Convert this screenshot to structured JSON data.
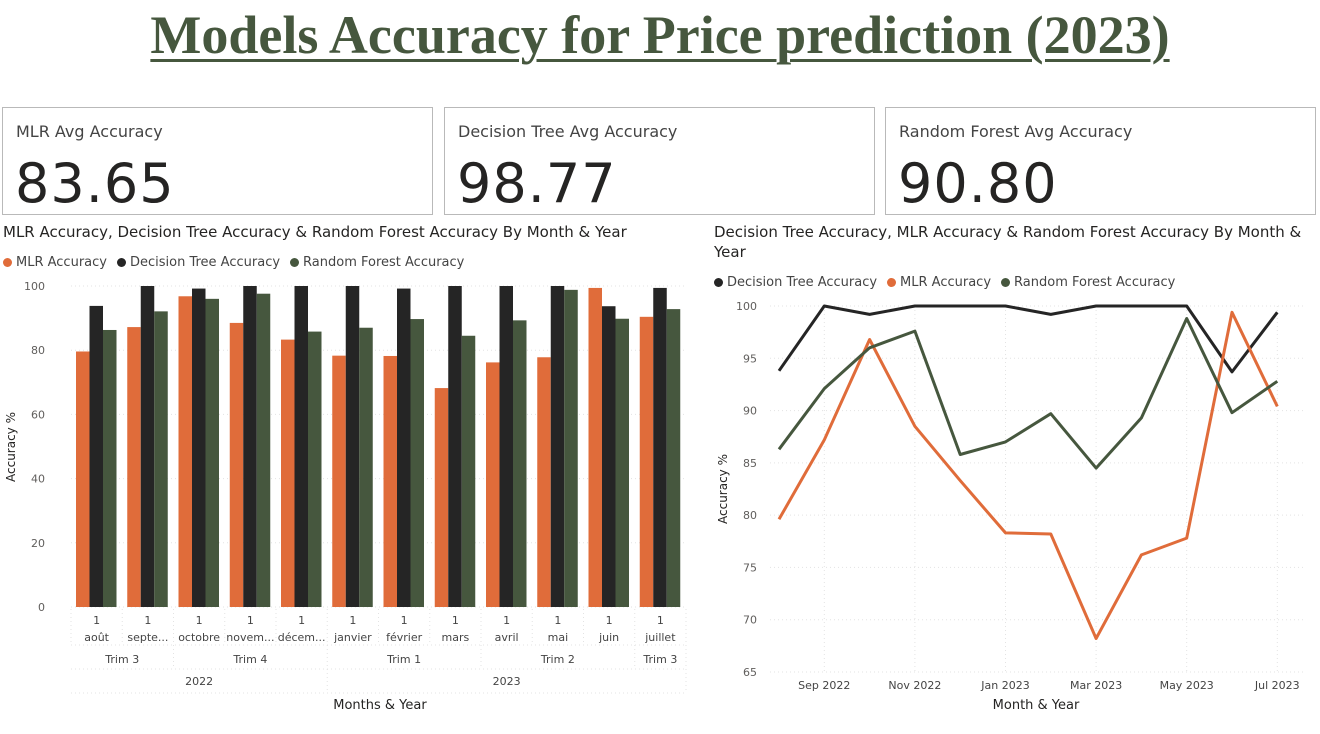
{
  "page": {
    "title": "Models Accuracy for Price prediction (2023)"
  },
  "cards": [
    {
      "label": "MLR Avg Accuracy",
      "value": "83.65"
    },
    {
      "label": "Decision Tree Avg Accuracy",
      "value": "98.77"
    },
    {
      "label": "Random Forest Avg Accuracy",
      "value": "90.80"
    }
  ],
  "colors": {
    "mlr": "#e06c3a",
    "tree": "#252525",
    "forest": "#46573e",
    "title": "#46573e"
  },
  "bar_chart": {
    "title": "MLR Accuracy, Decision Tree Accuracy & Random Forest Accuracy By Month & Year",
    "legend": [
      "MLR Accuracy",
      "Decision Tree Accuracy",
      "Random Forest Accuracy"
    ],
    "ylabel": "Accuracy %",
    "xlabel": "Months & Year",
    "day_labels": [
      "1",
      "1",
      "1",
      "1",
      "1",
      "1",
      "1",
      "1",
      "1",
      "1",
      "1",
      "1"
    ],
    "months": [
      "août",
      "septe...",
      "octobre",
      "novem...",
      "décem...",
      "janvier",
      "février",
      "mars",
      "avril",
      "mai",
      "juin",
      "juillet"
    ],
    "quarters": [
      "Trim 3",
      "Trim 4",
      "Trim 1",
      "Trim 2",
      "Trim 3"
    ],
    "years": [
      "2022",
      "2023"
    ]
  },
  "line_chart": {
    "title_line1": "Decision Tree Accuracy, MLR Accuracy & Random Forest Accuracy By Month &",
    "title_line2": "Year",
    "legend": [
      "Decision Tree Accuracy",
      "MLR Accuracy",
      "Random Forest Accuracy"
    ],
    "ylabel": "Accuracy %",
    "xlabel": "Month & Year"
  },
  "chart_data": [
    {
      "type": "bar",
      "title": "MLR Accuracy, Decision Tree Accuracy & Random Forest Accuracy By Month & Year",
      "xlabel": "Months & Year",
      "ylabel": "Accuracy %",
      "ylim": [
        0,
        100
      ],
      "yticks": [
        0,
        20,
        40,
        60,
        80,
        100
      ],
      "grid": true,
      "legend_position": "top-left",
      "categories": [
        "août",
        "septe...",
        "octobre",
        "novem...",
        "décem...",
        "janvier",
        "février",
        "mars",
        "avril",
        "mai",
        "juin",
        "juillet"
      ],
      "series": [
        {
          "name": "MLR Accuracy",
          "values": [
            79.6,
            87.2,
            96.8,
            88.5,
            83.3,
            78.3,
            78.2,
            68.2,
            76.2,
            77.8,
            99.4,
            90.4
          ]
        },
        {
          "name": "Decision Tree Accuracy",
          "values": [
            93.8,
            100,
            99.2,
            100,
            100,
            100,
            99.2,
            100,
            100,
            100,
            93.7,
            99.4
          ]
        },
        {
          "name": "Random Forest Accuracy",
          "values": [
            86.3,
            92.1,
            96.0,
            97.6,
            85.8,
            87.0,
            89.7,
            84.5,
            89.3,
            98.8,
            89.8,
            92.8
          ]
        }
      ]
    },
    {
      "type": "line",
      "title": "Decision Tree Accuracy, MLR Accuracy & Random Forest Accuracy By Month & Year",
      "xlabel": "Month & Year",
      "ylabel": "Accuracy %",
      "ylim": [
        65,
        100
      ],
      "yticks": [
        65,
        70,
        75,
        80,
        85,
        90,
        95,
        100
      ],
      "x_tick_labels": [
        "Sep 2022",
        "Nov 2022",
        "Jan 2023",
        "Mar 2023",
        "May 2023",
        "Jul 2023"
      ],
      "x_tick_index": [
        1,
        3,
        5,
        7,
        9,
        11
      ],
      "x": [
        "2022-08",
        "2022-09",
        "2022-10",
        "2022-11",
        "2022-12",
        "2023-01",
        "2023-02",
        "2023-03",
        "2023-04",
        "2023-05",
        "2023-06",
        "2023-07"
      ],
      "grid": true,
      "legend_position": "top-left",
      "series": [
        {
          "name": "Decision Tree Accuracy",
          "values": [
            93.8,
            100,
            99.2,
            100,
            100,
            100,
            99.2,
            100,
            100,
            100,
            93.7,
            99.4
          ]
        },
        {
          "name": "MLR Accuracy",
          "values": [
            79.6,
            87.2,
            96.8,
            88.5,
            83.3,
            78.3,
            78.2,
            68.2,
            76.2,
            77.8,
            99.4,
            90.4
          ]
        },
        {
          "name": "Random Forest Accuracy",
          "values": [
            86.3,
            92.1,
            96.0,
            97.6,
            85.8,
            87.0,
            89.7,
            84.5,
            89.3,
            98.8,
            89.8,
            92.8
          ]
        }
      ]
    }
  ]
}
